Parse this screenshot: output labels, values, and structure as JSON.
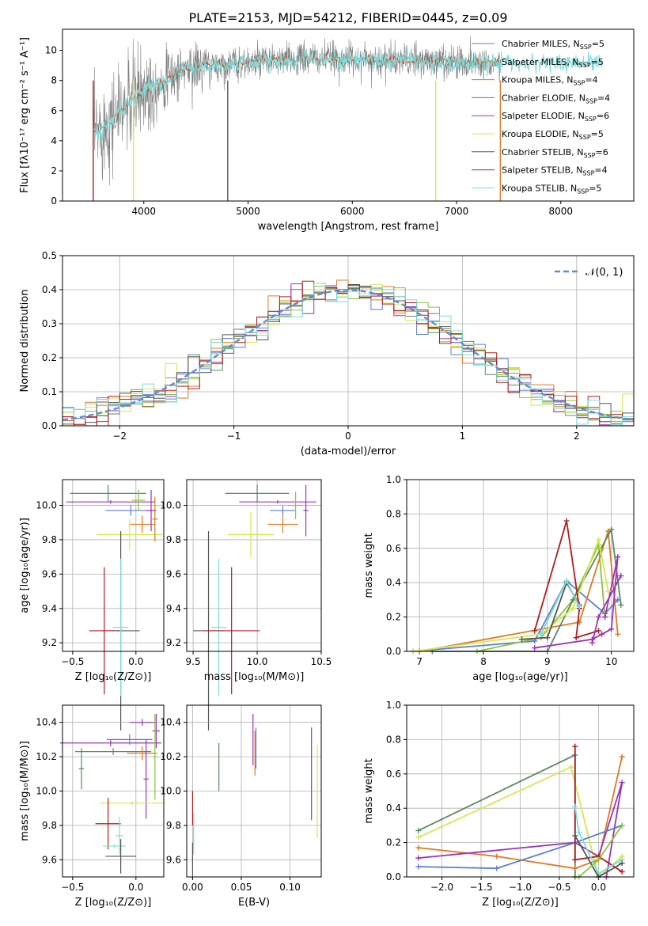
{
  "chart_data": [
    {
      "type": "line",
      "title": "PLATE=2153, MJD=54212, FIBERID=0445, z=0.09",
      "xlabel": "wavelength [Angstrom, rest frame]",
      "ylabel": "Flux [fλ10⁻¹⁷ erg cm⁻² s⁻¹ A⁻¹]",
      "xlim": [
        3220,
        8700
      ],
      "ylim": [
        0,
        11.4
      ],
      "xticks": [
        "4000",
        "5000",
        "6000",
        "7000",
        "8000"
      ],
      "yticks": [
        "0",
        "2",
        "4",
        "6",
        "8",
        "10"
      ],
      "legend_loc": "right",
      "series": [
        {
          "name": "Chabrier MILES, N",
          "sub": "SSP",
          "suffix": "=5",
          "color": "#5b7fd6"
        },
        {
          "name": "Salpeter MILES, N",
          "sub": "SSP",
          "suffix": "=5",
          "color": "#8cc43a"
        },
        {
          "name": "Kroupa MILES, N",
          "sub": "SSP",
          "suffix": "=4",
          "color": "#de7a22"
        },
        {
          "name": "Chabrier ELODIE, N",
          "sub": "SSP",
          "suffix": "=4",
          "color": "#5a8a62"
        },
        {
          "name": "Salpeter ELODIE, N",
          "sub": "SSP",
          "suffix": "=6",
          "color": "#9a34b8"
        },
        {
          "name": "Kroupa ELODIE, N",
          "sub": "SSP",
          "suffix": "=5",
          "color": "#d4e850"
        },
        {
          "name": "Chabrier STELIB, N",
          "sub": "SSP",
          "suffix": "=6",
          "color": "#555555"
        },
        {
          "name": "Salpeter STELIB, N",
          "sub": "SSP",
          "suffix": "=4",
          "color": "#b01e1e"
        },
        {
          "name": "Kroupa STELIB, N",
          "sub": "SSP",
          "suffix": "=5",
          "color": "#7ddcdc"
        }
      ],
      "data_color": "#808080",
      "model_color": "#7ddcdc"
    },
    {
      "type": "line",
      "xlabel": "(data-model)/error",
      "ylabel": "Normed distribution",
      "xlim": [
        -2.5,
        2.5
      ],
      "ylim": [
        0,
        0.5
      ],
      "xticks": [
        "−2",
        "−1",
        "0",
        "1",
        "2"
      ],
      "yticks": [
        "0.0",
        "0.1",
        "0.2",
        "0.3",
        "0.4",
        "0.5"
      ],
      "legend": "𝒩(0, 1)",
      "legend_loc": "top-right",
      "grid": true
    },
    {
      "type": "scatter",
      "xlabel": "Z [log₁₀(Z/Z⊙)]",
      "ylabel": "age  [log₁₀(age/yr)]",
      "xlim": [
        -0.58,
        0.22
      ],
      "ylim": [
        9.15,
        10.15
      ],
      "xticks": [
        "−0.5",
        "0.0"
      ],
      "yticks": [
        "9.2",
        "9.4",
        "9.6",
        "9.8",
        "10.0"
      ],
      "grid": true
    },
    {
      "type": "scatter",
      "xlabel": "mass [log₁₀(M/M⊙)]",
      "xlim": [
        9.45,
        10.5
      ],
      "ylim": [
        9.15,
        10.15
      ],
      "xticks": [
        "9.5",
        "10.0",
        "10.5"
      ],
      "yticks": [
        "9.2",
        "9.4",
        "9.6",
        "9.8",
        "10.0"
      ],
      "grid": true
    },
    {
      "type": "line",
      "xlabel": "age  [log₁₀(age/yr)]",
      "ylabel": "mass weight",
      "xlim": [
        6.8,
        10.35
      ],
      "ylim": [
        0,
        1
      ],
      "xticks": [
        "7",
        "8",
        "9",
        "10"
      ],
      "yticks": [
        "0.0",
        "0.2",
        "0.4",
        "0.6",
        "0.8",
        "1.0"
      ],
      "grid": true
    },
    {
      "type": "scatter",
      "xlabel": "Z [log₁₀(Z/Z⊙)]",
      "ylabel": "mass [log₁₀(M/M⊙)]",
      "xlim": [
        -0.58,
        0.22
      ],
      "ylim": [
        9.5,
        10.5
      ],
      "xticks": [
        "−0.5",
        "0.0"
      ],
      "yticks": [
        "9.6",
        "9.8",
        "10.0",
        "10.2",
        "10.4"
      ],
      "grid": true
    },
    {
      "type": "scatter",
      "xlabel": "E(B-V)",
      "xlim": [
        -0.006,
        0.132
      ],
      "ylim": [
        9.5,
        10.5
      ],
      "xticks": [
        "0.00",
        "0.05",
        "0.10"
      ],
      "yticks": [
        "9.6",
        "9.8",
        "10.0",
        "10.2",
        "10.4"
      ],
      "grid": true
    },
    {
      "type": "line",
      "xlabel": "Z [log₁₀(Z/Z⊙)]",
      "ylabel": "mass weight",
      "xlim": [
        -2.45,
        0.45
      ],
      "ylim": [
        0,
        1
      ],
      "xticks": [
        "−2.0",
        "−1.5",
        "−1.0",
        "−0.5",
        "0.0"
      ],
      "yticks": [
        "0.0",
        "0.2",
        "0.4",
        "0.6",
        "0.8",
        "1.0"
      ],
      "grid": true
    }
  ]
}
